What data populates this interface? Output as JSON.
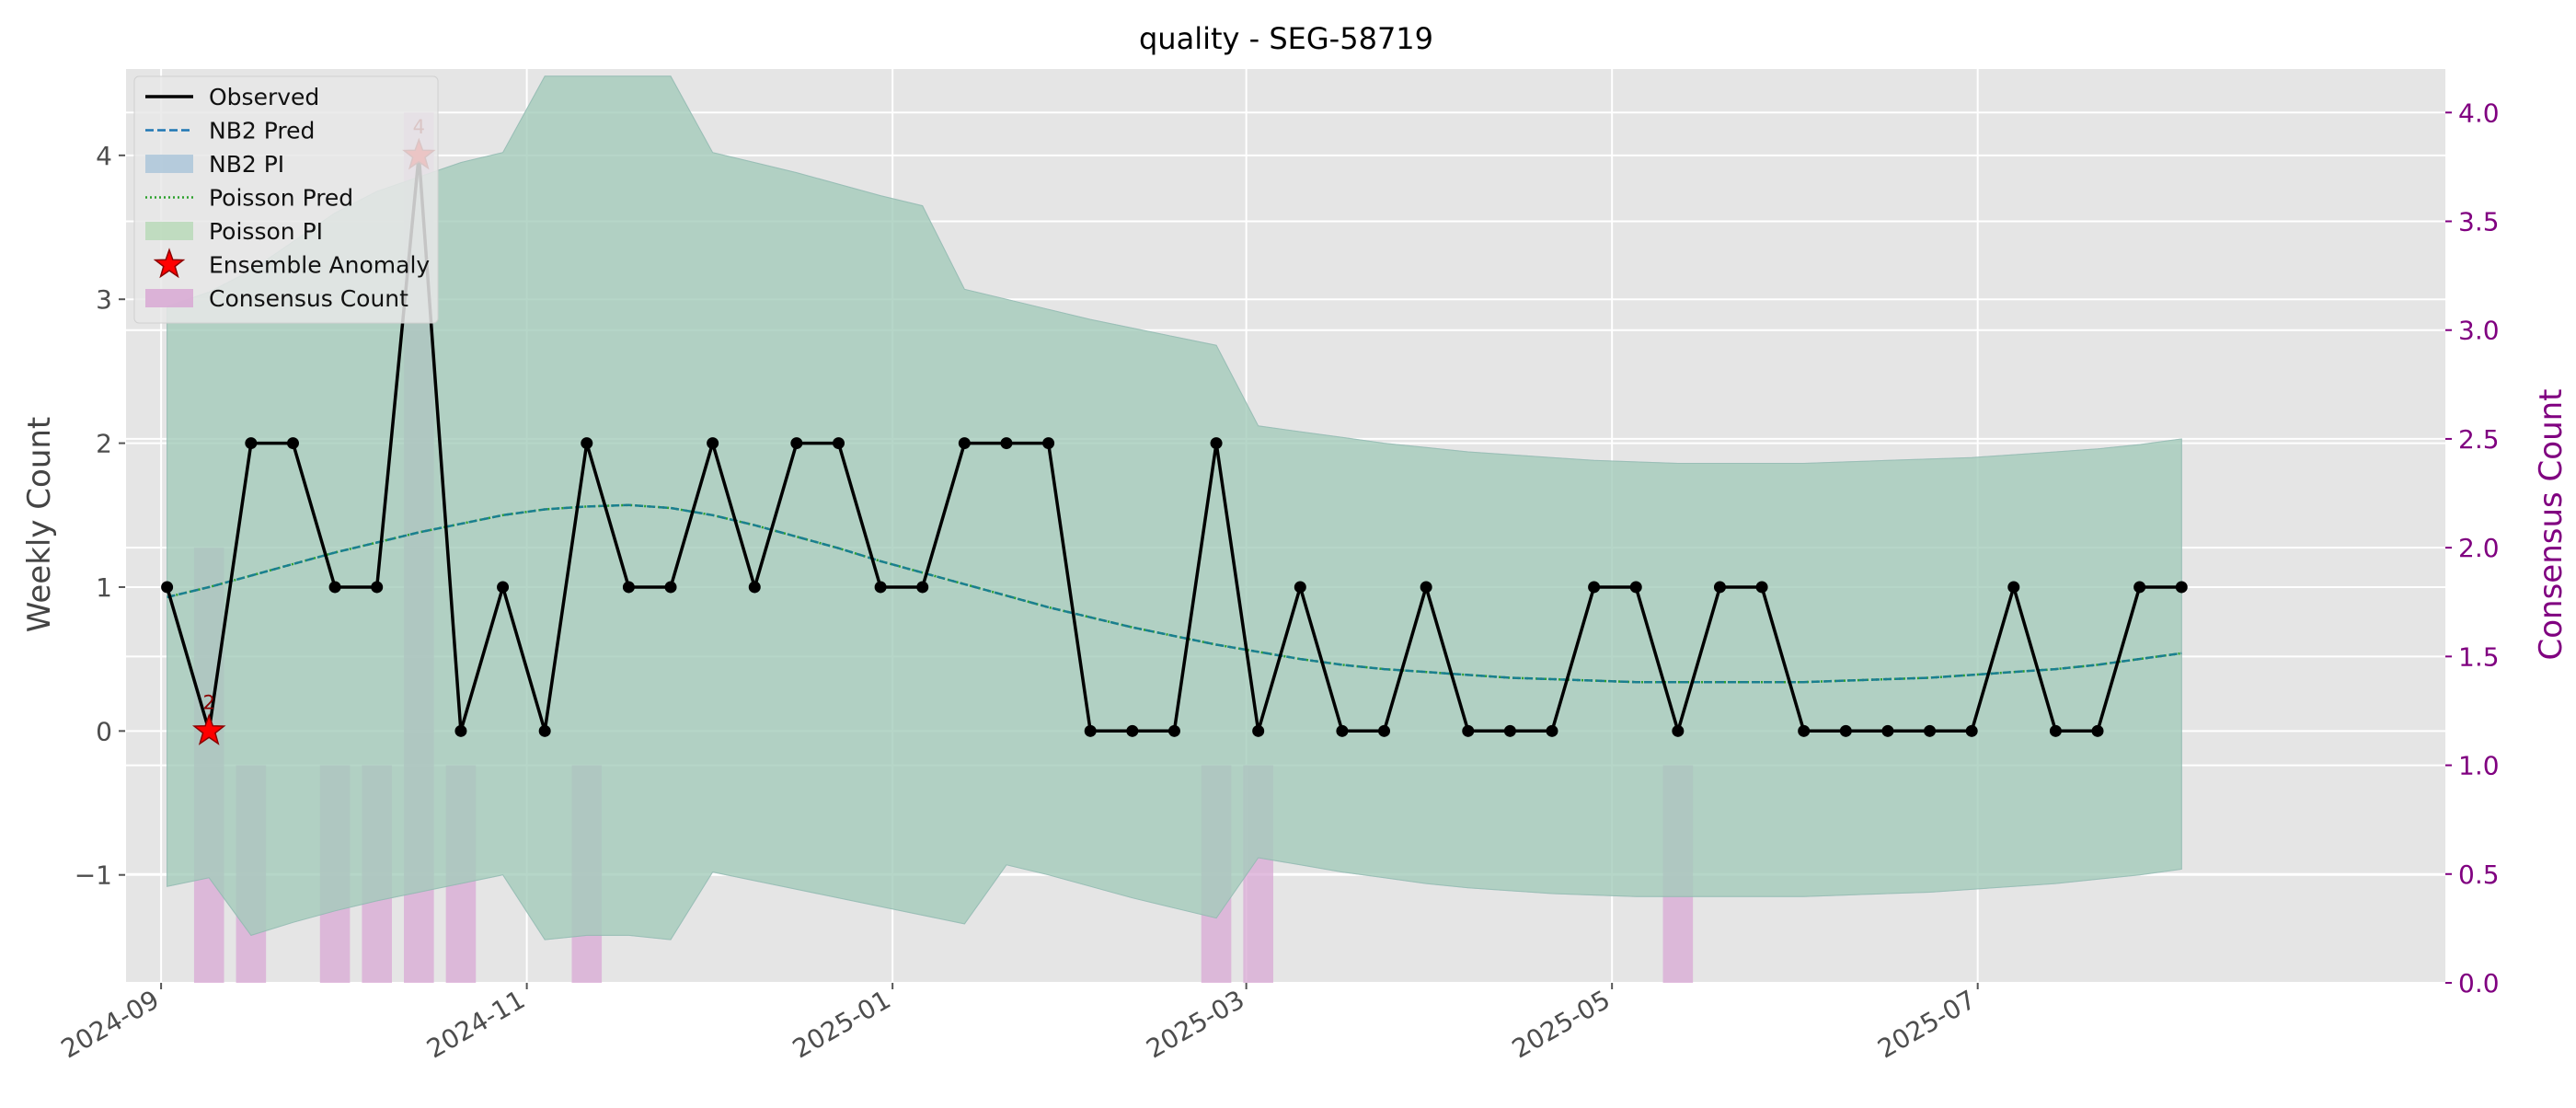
{
  "chart_data": {
    "type": "line",
    "title": "quality - SEG-58719",
    "ylabel": "Weekly Count",
    "y2label": "Consensus Count",
    "ylim": [
      -1.75,
      4.6
    ],
    "y2lim": [
      0.0,
      4.2
    ],
    "xlim": [
      "2024-08-26",
      "2025-09-17"
    ],
    "yticks": [
      -1,
      0,
      1,
      2,
      3,
      4
    ],
    "yticklabels": [
      "−1",
      "0",
      "1",
      "2",
      "3",
      "4"
    ],
    "y2ticks": [
      0.0,
      0.5,
      1.0,
      1.5,
      2.0,
      2.5,
      3.0,
      3.5,
      4.0
    ],
    "y2ticklabels": [
      "0.0",
      "0.5",
      "1.0",
      "1.5",
      "2.0",
      "2.5",
      "3.0",
      "3.5",
      "4.0"
    ],
    "xticks": [
      "2024-09-01",
      "2024-11-01",
      "2025-01-01",
      "2025-03-01",
      "2025-05-01",
      "2025-07-01"
    ],
    "xticklabels": [
      "2024-09",
      "2024-11",
      "2025-01",
      "2025-03",
      "2025-05",
      "2025-07"
    ],
    "grid": true,
    "legend_position": "top-left",
    "legend": [
      "Observed",
      "NB2 Pred",
      "NB2 PI",
      "Poisson Pred",
      "Poisson PI",
      "Ensemble Anomaly",
      "Consensus Count"
    ],
    "colors": {
      "observed": "#000000",
      "nb2_pred": "#1f77b4",
      "poisson_pred": "#2ca02c",
      "band": "#9cc6bf",
      "anomaly": "#ff0000",
      "consensus_bar": "#d8a8d4",
      "secondary_axis": "#800080",
      "plot_bg": "#e5e5e5"
    },
    "x": [
      "2024-09-02",
      "2024-09-09",
      "2024-09-16",
      "2024-09-23",
      "2024-09-30",
      "2024-10-07",
      "2024-10-14",
      "2024-10-21",
      "2024-10-28",
      "2024-11-04",
      "2024-11-11",
      "2024-11-18",
      "2024-11-25",
      "2024-12-02",
      "2024-12-09",
      "2024-12-16",
      "2024-12-23",
      "2024-12-30",
      "2025-01-06",
      "2025-01-13",
      "2025-01-20",
      "2025-01-27",
      "2025-02-03",
      "2025-02-10",
      "2025-02-17",
      "2025-02-24",
      "2025-03-03",
      "2025-03-10",
      "2025-03-17",
      "2025-03-24",
      "2025-03-31",
      "2025-04-07",
      "2025-04-14",
      "2025-04-21",
      "2025-04-28",
      "2025-05-05",
      "2025-05-12",
      "2025-05-19",
      "2025-05-26",
      "2025-06-02",
      "2025-06-09",
      "2025-06-16",
      "2025-06-23",
      "2025-06-30",
      "2025-07-07",
      "2025-07-14",
      "2025-07-21",
      "2025-07-28",
      "2025-08-04"
    ],
    "series": [
      {
        "name": "Observed",
        "values": [
          1,
          0,
          2,
          2,
          1,
          1,
          4,
          0,
          1,
          0,
          2,
          1,
          1,
          2,
          1,
          2,
          2,
          1,
          1,
          2,
          2,
          2,
          0,
          0,
          0,
          2,
          0,
          1,
          0,
          0,
          1,
          0,
          0,
          0,
          1,
          1,
          0,
          1,
          1,
          0,
          0,
          0,
          0,
          0,
          1,
          0,
          0,
          1,
          1
        ]
      },
      {
        "name": "NB2 Pred",
        "values": [
          0.93,
          1.0,
          1.08,
          1.16,
          1.24,
          1.31,
          1.38,
          1.44,
          1.5,
          1.54,
          1.56,
          1.57,
          1.55,
          1.5,
          1.43,
          1.35,
          1.27,
          1.18,
          1.1,
          1.02,
          0.94,
          0.86,
          0.79,
          0.72,
          0.66,
          0.6,
          0.55,
          0.5,
          0.46,
          0.43,
          0.41,
          0.39,
          0.37,
          0.36,
          0.35,
          0.34,
          0.34,
          0.34,
          0.34,
          0.34,
          0.35,
          0.36,
          0.37,
          0.39,
          0.41,
          0.43,
          0.46,
          0.5,
          0.54
        ]
      },
      {
        "name": "Poisson Pred",
        "values": [
          0.93,
          1.0,
          1.08,
          1.16,
          1.24,
          1.31,
          1.38,
          1.44,
          1.5,
          1.54,
          1.56,
          1.57,
          1.55,
          1.5,
          1.43,
          1.35,
          1.27,
          1.18,
          1.1,
          1.02,
          0.94,
          0.86,
          0.79,
          0.72,
          0.66,
          0.6,
          0.55,
          0.5,
          0.46,
          0.43,
          0.41,
          0.39,
          0.37,
          0.36,
          0.35,
          0.34,
          0.34,
          0.34,
          0.34,
          0.34,
          0.35,
          0.36,
          0.37,
          0.39,
          0.41,
          0.43,
          0.46,
          0.5,
          0.54
        ]
      }
    ],
    "nb2_pi_upper": [
      2.95,
      3.05,
      3.2,
      3.4,
      3.6,
      3.75,
      3.85,
      3.95,
      4.02,
      4.55,
      4.55,
      4.55,
      4.55,
      4.02,
      3.95,
      3.88,
      3.8,
      3.72,
      3.65,
      3.07,
      3.0,
      2.93,
      2.86,
      2.8,
      2.74,
      2.68,
      2.12,
      2.08,
      2.04,
      2.0,
      1.97,
      1.94,
      1.92,
      1.9,
      1.88,
      1.87,
      1.86,
      1.86,
      1.86,
      1.86,
      1.87,
      1.88,
      1.89,
      1.9,
      1.92,
      1.94,
      1.96,
      1.99,
      2.03
    ],
    "nb2_pi_lower": [
      -1.08,
      -1.02,
      -1.42,
      -1.33,
      -1.25,
      -1.18,
      -1.12,
      -1.06,
      -1.0,
      -1.45,
      -1.42,
      -1.42,
      -1.45,
      -0.98,
      -1.04,
      -1.1,
      -1.16,
      -1.22,
      -1.28,
      -1.34,
      -0.93,
      -1.0,
      -1.08,
      -1.16,
      -1.23,
      -1.3,
      -0.88,
      -0.93,
      -0.98,
      -1.02,
      -1.06,
      -1.09,
      -1.11,
      -1.13,
      -1.14,
      -1.15,
      -1.15,
      -1.15,
      -1.15,
      -1.15,
      -1.14,
      -1.13,
      -1.12,
      -1.1,
      -1.08,
      -1.06,
      -1.03,
      -1.0,
      -0.96
    ],
    "poisson_pi_upper": [
      2.95,
      3.05,
      3.2,
      3.4,
      3.6,
      3.75,
      3.85,
      3.95,
      4.02,
      4.55,
      4.55,
      4.55,
      4.55,
      4.02,
      3.95,
      3.88,
      3.8,
      3.72,
      3.65,
      3.07,
      3.0,
      2.93,
      2.86,
      2.8,
      2.74,
      2.68,
      2.12,
      2.08,
      2.04,
      2.0,
      1.97,
      1.94,
      1.92,
      1.9,
      1.88,
      1.87,
      1.86,
      1.86,
      1.86,
      1.86,
      1.87,
      1.88,
      1.89,
      1.9,
      1.92,
      1.94,
      1.96,
      1.99,
      2.03
    ],
    "poisson_pi_lower": [
      -1.08,
      -1.02,
      -1.42,
      -1.33,
      -1.25,
      -1.18,
      -1.12,
      -1.06,
      -1.0,
      -1.45,
      -1.42,
      -1.42,
      -1.45,
      -0.98,
      -1.04,
      -1.1,
      -1.16,
      -1.22,
      -1.28,
      -1.34,
      -0.93,
      -1.0,
      -1.08,
      -1.16,
      -1.23,
      -1.3,
      -0.88,
      -0.93,
      -0.98,
      -1.02,
      -1.06,
      -1.09,
      -1.11,
      -1.13,
      -1.14,
      -1.15,
      -1.15,
      -1.15,
      -1.15,
      -1.15,
      -1.14,
      -1.13,
      -1.12,
      -1.1,
      -1.08,
      -1.06,
      -1.03,
      -1.0,
      -0.96
    ],
    "anomalies": [
      {
        "x": "2024-09-09",
        "y": 0,
        "label": "2"
      },
      {
        "x": "2024-10-14",
        "y": 4,
        "label": "4"
      }
    ],
    "consensus": [
      {
        "x": "2024-09-09",
        "count": 2
      },
      {
        "x": "2024-09-16",
        "count": 1
      },
      {
        "x": "2024-09-30",
        "count": 1
      },
      {
        "x": "2024-10-07",
        "count": 1
      },
      {
        "x": "2024-10-14",
        "count": 4
      },
      {
        "x": "2024-10-21",
        "count": 1
      },
      {
        "x": "2024-11-11",
        "count": 1
      },
      {
        "x": "2025-02-24",
        "count": 1
      },
      {
        "x": "2025-03-03",
        "count": 1
      },
      {
        "x": "2025-05-12",
        "count": 1
      }
    ]
  }
}
